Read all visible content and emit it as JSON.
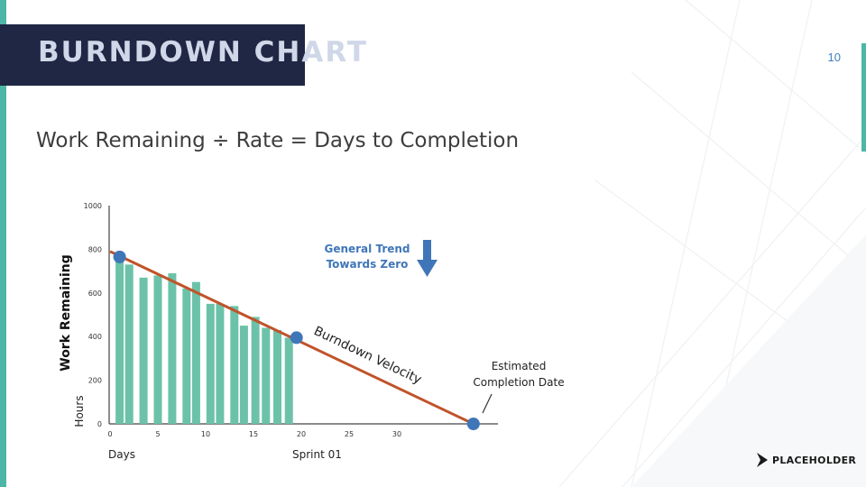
{
  "slide": {
    "title": "BURNDOWN CHART",
    "page_number": "10",
    "subtitle": "Work Remaining ÷ Rate = Days to Completion",
    "logo_text": "PLACEHOLDER"
  },
  "colors": {
    "banner": "#1f2744",
    "banner_text": "#cfd7e8",
    "accent": "#4db6a6",
    "bars": "#6cc2a8",
    "velocity_line": "#c0532a",
    "points": "#3f76b8",
    "trend_text": "#3f76b8"
  },
  "chart_data": {
    "type": "bar",
    "ylabel": "Work Remaining",
    "yunit": "Hours",
    "xlabel": "Days",
    "sprint_label": "Sprint 01",
    "ylim": [
      0,
      1000
    ],
    "xlim": [
      0,
      40
    ],
    "yticks": [
      0,
      200,
      400,
      600,
      800,
      1000
    ],
    "xticks": [
      0,
      5,
      10,
      15,
      20,
      25,
      30
    ],
    "grid": false,
    "bars": {
      "days": [
        1,
        2,
        3.5,
        5,
        6.5,
        8,
        9,
        10.5,
        11.5,
        13,
        14,
        15.2,
        16.3,
        17.5,
        18.7
      ],
      "values": [
        760,
        730,
        670,
        680,
        690,
        620,
        650,
        550,
        550,
        540,
        450,
        490,
        440,
        430,
        395
      ]
    },
    "velocity_line": {
      "name": "Burndown Velocity",
      "x": [
        0,
        38
      ],
      "y": [
        790,
        0
      ]
    },
    "points": [
      {
        "x": 1,
        "y": 765
      },
      {
        "x": 19.5,
        "y": 395
      },
      {
        "x": 38,
        "y": 0
      }
    ],
    "annotations": {
      "trend": [
        "General Trend",
        "Towards Zero"
      ],
      "estimate": [
        "Estimated",
        "Completion Date"
      ]
    }
  }
}
